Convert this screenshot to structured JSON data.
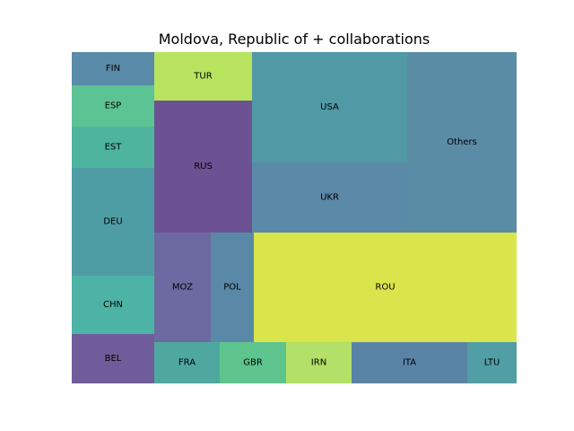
{
  "chart_data": {
    "type": "treemap",
    "title": "Moldova, Republic of + collaborations",
    "tiles": [
      {
        "label": "FIN",
        "value": 24,
        "color": "#5a8ba8"
      },
      {
        "label": "ESP",
        "value": 30,
        "color": "#5cc494"
      },
      {
        "label": "EST",
        "value": 30,
        "color": "#4fb49e"
      },
      {
        "label": "DEU",
        "value": 78,
        "color": "#4f9da4"
      },
      {
        "label": "CHN",
        "value": 43,
        "color": "#4db3a4"
      },
      {
        "label": "BEL",
        "value": 35,
        "color": "#6e5d9a"
      },
      {
        "label": "TUR",
        "value": 42,
        "color": "#b8e35e"
      },
      {
        "label": "RUS",
        "value": 116,
        "color": "#6c5292"
      },
      {
        "label": "MOZ",
        "value": 50,
        "color": "#6c6aa0"
      },
      {
        "label": "POL",
        "value": 35,
        "color": "#5a89a8"
      },
      {
        "label": "USA",
        "value": 153,
        "color": "#5199a4"
      },
      {
        "label": "UKR",
        "value": 99,
        "color": "#5a8aa8"
      },
      {
        "label": "Others",
        "value": 175,
        "color": "#5a8ca6"
      },
      {
        "label": "ROU",
        "value": 253,
        "color": "#d9e54a"
      },
      {
        "label": "FRA",
        "value": 52,
        "color": "#4ea8a0"
      },
      {
        "label": "GBR",
        "value": 52,
        "color": "#5dc48e"
      },
      {
        "label": "IRN",
        "value": 52,
        "color": "#b3e068"
      },
      {
        "label": "ITA",
        "value": 92,
        "color": "#5a84a6"
      },
      {
        "label": "LTU",
        "value": 39,
        "color": "#519ea4"
      }
    ]
  }
}
